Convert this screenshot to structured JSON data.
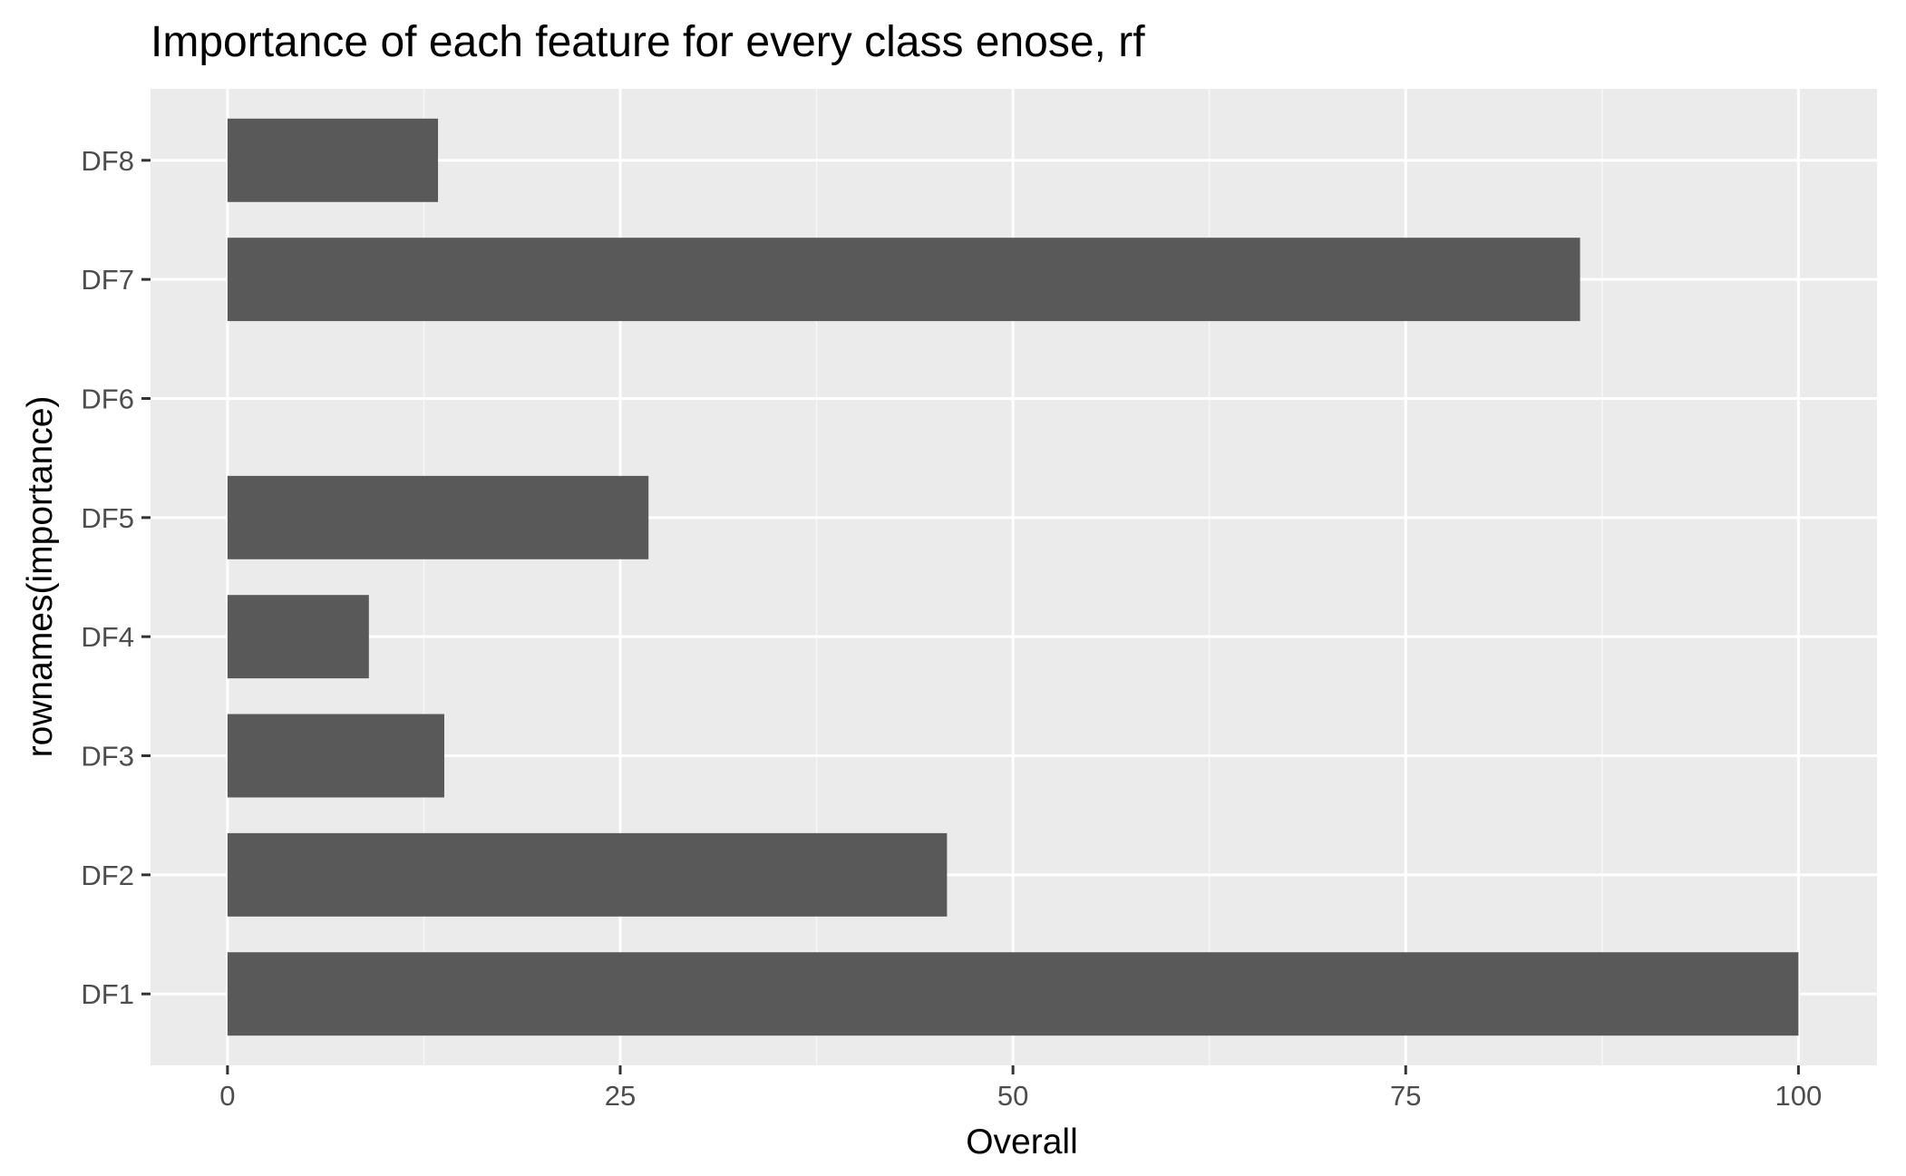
{
  "chart_data": {
    "type": "bar",
    "orientation": "horizontal",
    "title": "Importance of each feature for every class enose, rf",
    "xlabel": "Overall",
    "ylabel": "rownames(importance)",
    "categories": [
      "DF1",
      "DF2",
      "DF3",
      "DF4",
      "DF5",
      "DF6",
      "DF7",
      "DF8"
    ],
    "values": [
      100,
      45.8,
      13.8,
      9.0,
      26.8,
      0,
      86.1,
      13.4
    ],
    "xlim": [
      -4.9,
      105
    ],
    "xticks": [
      0,
      25,
      50,
      75,
      100
    ],
    "grid": true,
    "legend": "none",
    "colors": {
      "bar": "#595959",
      "panel": "#ebebeb",
      "grid_major": "#ffffff",
      "grid_minor": "#f7f7f7"
    }
  }
}
